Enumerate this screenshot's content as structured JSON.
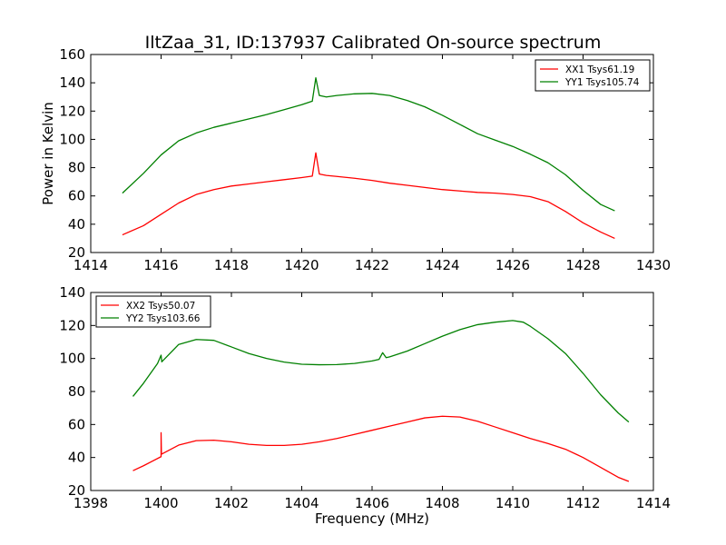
{
  "title": "IltZaa_31, ID:137937 Calibrated On-source spectrum",
  "chart_data": [
    {
      "type": "line",
      "xlabel": "",
      "ylabel": "Power in Kelvin",
      "xlim": [
        1414,
        1430
      ],
      "ylim": [
        20,
        160
      ],
      "xticks": [
        1414,
        1416,
        1418,
        1420,
        1422,
        1424,
        1426,
        1428,
        1430
      ],
      "yticks": [
        20,
        40,
        60,
        80,
        100,
        120,
        140,
        160
      ],
      "grid": false,
      "legend_position": "top-right",
      "series": [
        {
          "name": "XX1 Tsys61.19",
          "color": "#ff0000",
          "points": [
            [
              1414.9,
              32.5
            ],
            [
              1415.5,
              39
            ],
            [
              1416,
              47
            ],
            [
              1416.5,
              55
            ],
            [
              1417,
              61
            ],
            [
              1417.5,
              64.5
            ],
            [
              1418,
              67
            ],
            [
              1418.5,
              68.5
            ],
            [
              1419,
              70
            ],
            [
              1419.5,
              71.5
            ],
            [
              1420,
              73
            ],
            [
              1420.3,
              74
            ],
            [
              1420.4,
              90.5
            ],
            [
              1420.5,
              75.5
            ],
            [
              1420.7,
              74.5
            ],
            [
              1421,
              73.8
            ],
            [
              1421.5,
              72.5
            ],
            [
              1422,
              71
            ],
            [
              1422.5,
              69
            ],
            [
              1423,
              67.5
            ],
            [
              1423.5,
              66
            ],
            [
              1424,
              64.5
            ],
            [
              1424.5,
              63.5
            ],
            [
              1425,
              62.5
            ],
            [
              1425.5,
              62
            ],
            [
              1426,
              61
            ],
            [
              1426.5,
              59.5
            ],
            [
              1427,
              56
            ],
            [
              1427.5,
              49
            ],
            [
              1428,
              41
            ],
            [
              1428.5,
              34.5
            ],
            [
              1428.9,
              30
            ]
          ]
        },
        {
          "name": "YY1 Tsys105.74",
          "color": "#008000",
          "points": [
            [
              1414.9,
              62
            ],
            [
              1415.5,
              76
            ],
            [
              1416,
              89
            ],
            [
              1416.5,
              99
            ],
            [
              1417,
              104.5
            ],
            [
              1417.5,
              108.5
            ],
            [
              1418,
              111.5
            ],
            [
              1418.5,
              114.5
            ],
            [
              1419,
              117.5
            ],
            [
              1419.5,
              121
            ],
            [
              1420,
              124.5
            ],
            [
              1420.3,
              127
            ],
            [
              1420.4,
              143.5
            ],
            [
              1420.5,
              131
            ],
            [
              1420.7,
              130
            ],
            [
              1421,
              131
            ],
            [
              1421.5,
              132.2
            ],
            [
              1422,
              132.5
            ],
            [
              1422.5,
              131
            ],
            [
              1423,
              127.5
            ],
            [
              1423.5,
              123
            ],
            [
              1424,
              117
            ],
            [
              1424.5,
              110.5
            ],
            [
              1425,
              104
            ],
            [
              1425.5,
              99.5
            ],
            [
              1426,
              95
            ],
            [
              1426.5,
              89.5
            ],
            [
              1427,
              83.5
            ],
            [
              1427.5,
              75
            ],
            [
              1428,
              64
            ],
            [
              1428.5,
              54
            ],
            [
              1428.9,
              49.5
            ]
          ]
        }
      ]
    },
    {
      "type": "line",
      "xlabel": "Frequency (MHz)",
      "ylabel": "",
      "xlim": [
        1398,
        1414
      ],
      "ylim": [
        20,
        140
      ],
      "xticks": [
        1398,
        1400,
        1402,
        1404,
        1406,
        1408,
        1410,
        1412,
        1414
      ],
      "yticks": [
        20,
        40,
        60,
        80,
        100,
        120,
        140
      ],
      "grid": false,
      "legend_position": "top-left",
      "series": [
        {
          "name": "XX2 Tsys50.07",
          "color": "#ff0000",
          "points": [
            [
              1399.2,
              32
            ],
            [
              1399.5,
              35
            ],
            [
              1400,
              40.5
            ],
            [
              1400,
              55
            ],
            [
              1400.01,
              42
            ],
            [
              1400.5,
              47.5
            ],
            [
              1401,
              50.2
            ],
            [
              1401.5,
              50.5
            ],
            [
              1402,
              49.5
            ],
            [
              1402.5,
              48
            ],
            [
              1403,
              47.3
            ],
            [
              1403.5,
              47.3
            ],
            [
              1404,
              48
            ],
            [
              1404.5,
              49.5
            ],
            [
              1405,
              51.5
            ],
            [
              1405.5,
              54
            ],
            [
              1406,
              56.5
            ],
            [
              1406.5,
              59
            ],
            [
              1407,
              61.5
            ],
            [
              1407.5,
              64
            ],
            [
              1408,
              65
            ],
            [
              1408.5,
              64.5
            ],
            [
              1409,
              62
            ],
            [
              1409.5,
              58.5
            ],
            [
              1410,
              55
            ],
            [
              1410.5,
              51.5
            ],
            [
              1411,
              48.5
            ],
            [
              1411.5,
              45
            ],
            [
              1412,
              40
            ],
            [
              1412.5,
              34
            ],
            [
              1413,
              28
            ],
            [
              1413.3,
              25.5
            ]
          ]
        },
        {
          "name": "YY2 Tsys103.66",
          "color": "#008000",
          "points": [
            [
              1399.2,
              77
            ],
            [
              1399.5,
              85
            ],
            [
              1399.9,
              97
            ],
            [
              1400,
              102
            ],
            [
              1400.02,
              98
            ],
            [
              1400.5,
              108.5
            ],
            [
              1401,
              111.5
            ],
            [
              1401.5,
              111
            ],
            [
              1402,
              107
            ],
            [
              1402.5,
              103
            ],
            [
              1403,
              100
            ],
            [
              1403.5,
              97.8
            ],
            [
              1404,
              96.5
            ],
            [
              1404.5,
              96.2
            ],
            [
              1405,
              96.3
            ],
            [
              1405.5,
              97
            ],
            [
              1406,
              98.5
            ],
            [
              1406.2,
              99.5
            ],
            [
              1406.3,
              103.5
            ],
            [
              1406.4,
              100.5
            ],
            [
              1406.5,
              101
            ],
            [
              1407,
              104.5
            ],
            [
              1407.5,
              109
            ],
            [
              1408,
              113.5
            ],
            [
              1408.5,
              117.5
            ],
            [
              1409,
              120.5
            ],
            [
              1409.5,
              122
            ],
            [
              1410,
              123
            ],
            [
              1410.3,
              122
            ],
            [
              1410.5,
              119.5
            ],
            [
              1411,
              112
            ],
            [
              1411.5,
              103
            ],
            [
              1412,
              91
            ],
            [
              1412.5,
              78
            ],
            [
              1413,
              67
            ],
            [
              1413.3,
              61.5
            ]
          ]
        }
      ]
    }
  ]
}
